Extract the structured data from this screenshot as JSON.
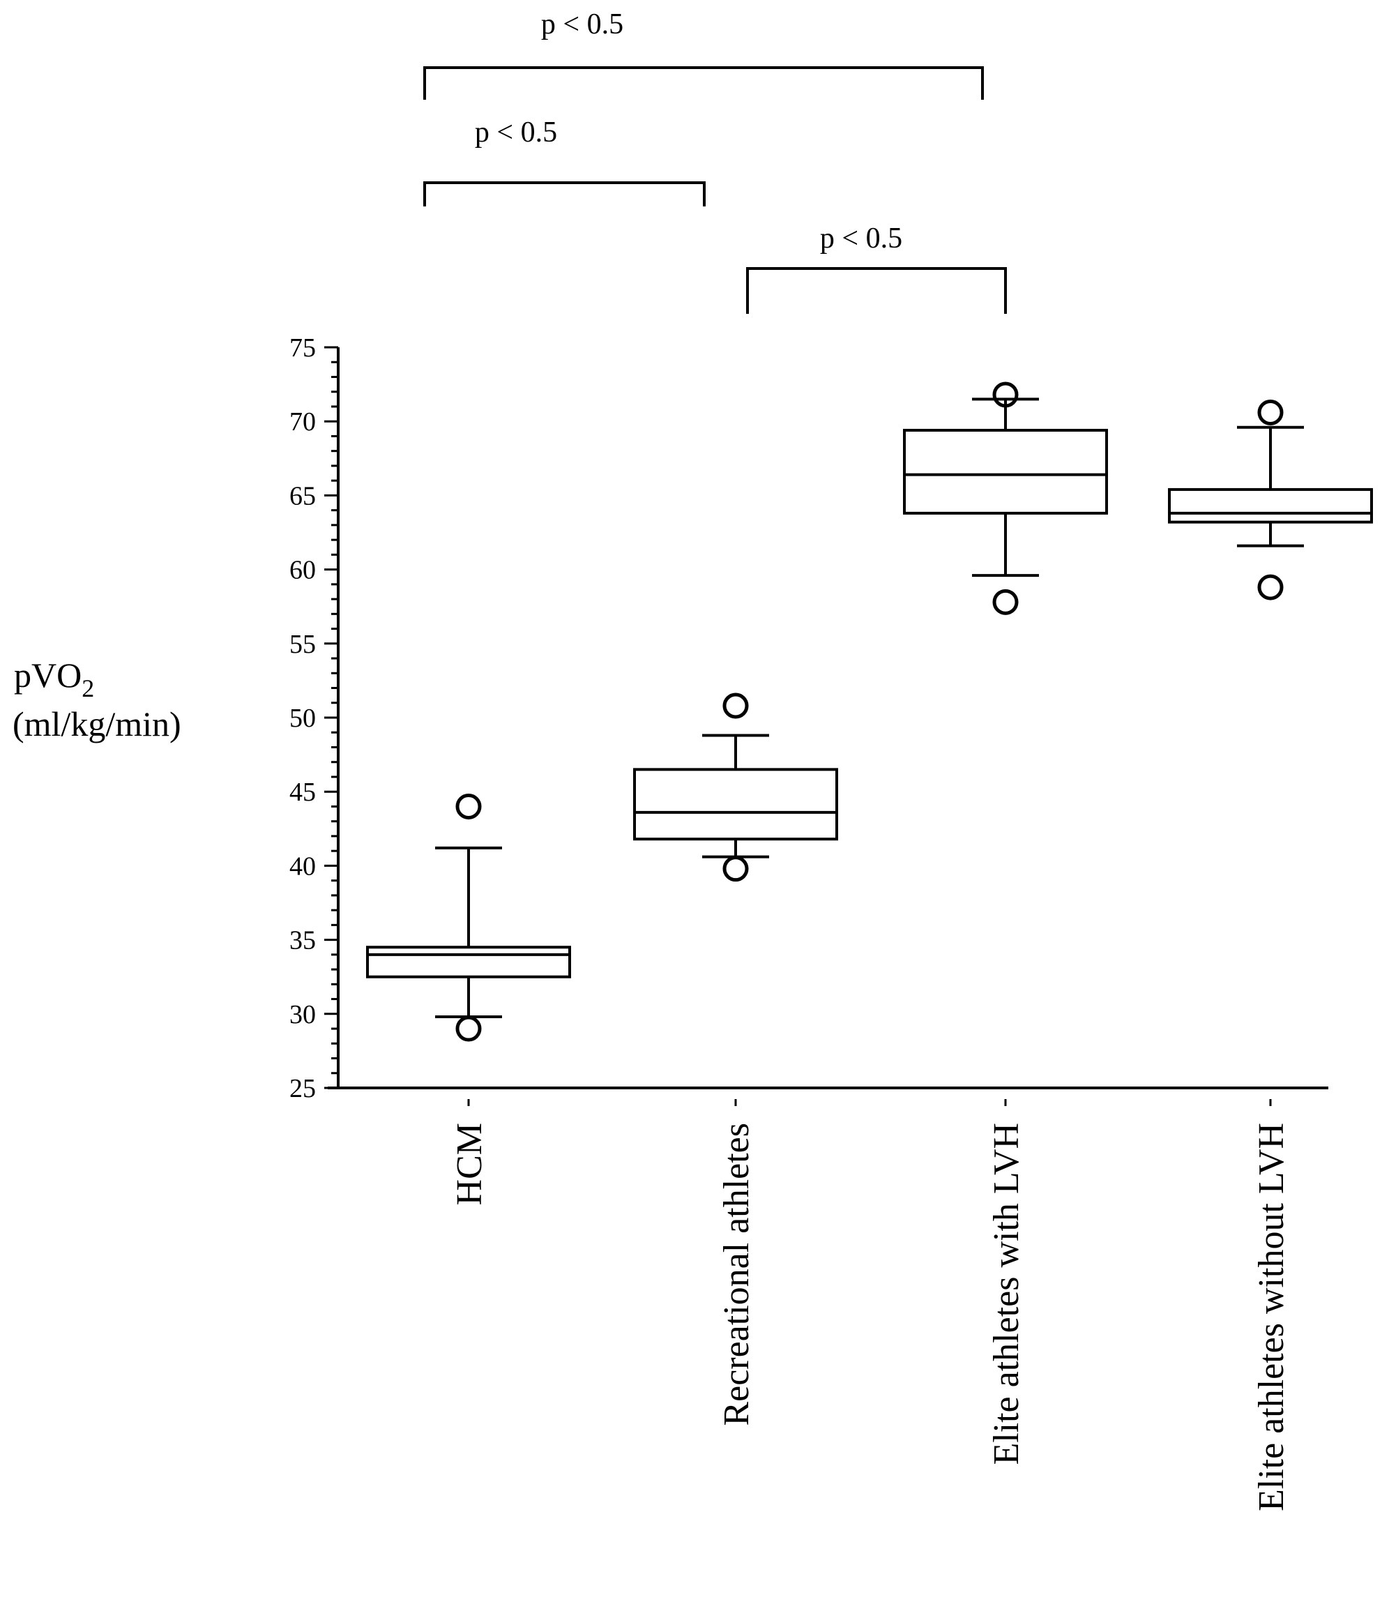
{
  "chart_data": {
    "type": "boxplot",
    "ylabel_line1": "pVO",
    "ylabel_sub": "2",
    "ylabel_line2": "(ml/kg/min)",
    "ylim": [
      25,
      75
    ],
    "yticks": [
      25,
      30,
      35,
      40,
      45,
      50,
      55,
      60,
      65,
      70,
      75
    ],
    "grid": false,
    "categories": [
      "HCM",
      "Recreational  athletes",
      "Elite athletes with LVH",
      "Elite athletes without LVH"
    ],
    "boxes": [
      {
        "whisker_low": 29.8,
        "q1": 32.5,
        "median": 34.0,
        "q3": 34.5,
        "whisker_high": 41.2,
        "outliers": [
          29.0,
          44.0
        ]
      },
      {
        "whisker_low": 40.6,
        "q1": 41.8,
        "median": 43.6,
        "q3": 46.5,
        "whisker_high": 48.8,
        "outliers": [
          39.8,
          50.8
        ]
      },
      {
        "whisker_low": 59.6,
        "q1": 63.8,
        "median": 66.4,
        "q3": 69.4,
        "whisker_high": 71.5,
        "outliers": [
          57.8,
          71.8
        ]
      },
      {
        "whisker_low": 61.6,
        "q1": 63.2,
        "median": 63.8,
        "q3": 65.4,
        "whisker_high": 69.6,
        "outliers": [
          58.8,
          70.6
        ]
      }
    ],
    "significance": [
      {
        "from": 0,
        "to": 2,
        "label": "p < 0.5"
      },
      {
        "from": 0,
        "to": 1,
        "label": "p < 0.5"
      },
      {
        "from": 1,
        "to": 2,
        "label": "p < 0.5"
      }
    ]
  }
}
